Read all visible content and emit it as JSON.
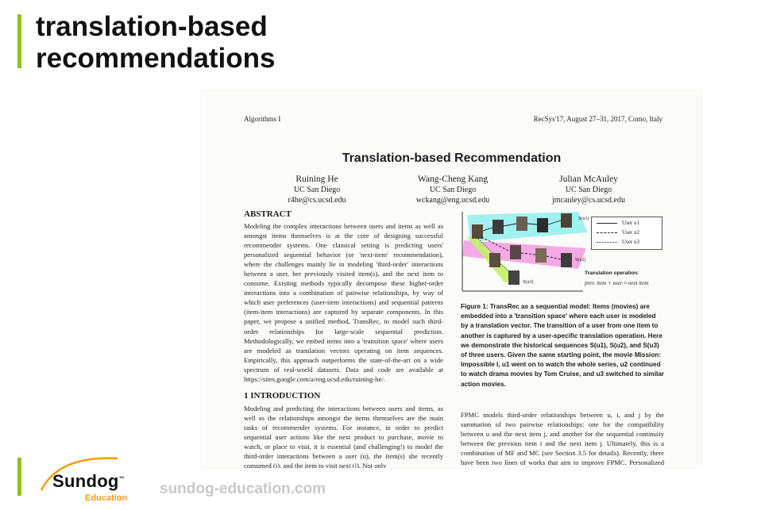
{
  "slide": {
    "title_line1": "translation-based",
    "title_line2": "recommendations"
  },
  "paper": {
    "header_left": "Algorithms I",
    "header_right": "RecSys'17, August 27–31, 2017, Como, Italy",
    "title": "Translation-based Recommendation",
    "authors": [
      {
        "name": "Ruining He",
        "affiliation": "UC San Diego",
        "email": "r4he@cs.ucsd.edu"
      },
      {
        "name": "Wang-Cheng Kang",
        "affiliation": "UC San Diego",
        "email": "wckang@eng.ucsd.edu"
      },
      {
        "name": "Julian McAuley",
        "affiliation": "UC San Diego",
        "email": "jmcauley@cs.ucsd.edu"
      }
    ],
    "abstract_heading": "ABSTRACT",
    "abstract": "Modeling the complex interactions between users and items as well as amongst items themselves is at the core of designing successful recommender systems. One classical setting is predicting users' personalized sequential behavior (or 'next-item' recommendation), where the challenges mainly lie in modeling 'third-order' interactions between a user, her previously visited item(s), and the next item to consume. Existing methods typically decompose these higher-order interactions into a combination of pairwise relationships, by way of which user preferences (user-item interactions) and sequential patterns (item-item interactions) are captured by separate components. In this paper, we propose a unified method, TransRec, to model such third-order relationships for large-scale sequential prediction. Methodologically, we embed items into a 'transition space' where users are modeled as translation vectors operating on item sequences. Empirically, this approach outperforms the state-of-the-art on a wide spectrum of real-world datasets. Data and code are available at https://sites.google.com/a/eng.ucsd.edu/ruining-he/.",
    "intro_heading": "1   INTRODUCTION",
    "intro": "Modeling and predicting the interactions between users and items, as well as the relationships amongst the items themselves are the main tasks of recommender systems. For instance, in order to predict sequential user actions like the next product to purchase, movie to watch, or place to visit, it is essential (and challenging!) to model the third-order interactions between a user (u), the item(s) she recently consumed (i), and the item to visit next (j). Not only",
    "figure": {
      "seq_labels": [
        "S(u1)",
        "S(u2)",
        "S(u3)"
      ],
      "legend": [
        "User u1",
        "User u2",
        "User u3"
      ],
      "op_title": "Translation operation:",
      "op_eq": "prev. item + user ≈ next item"
    },
    "caption": "Figure 1: TransRec as a sequential model: Items (movies) are embedded into a 'transition space' where each user is modeled by a translation vector. The transition of a user from one item to another is captured by a user-specific translation operation. Here we demonstrate the historical sequences S(u1), S(u2), and S(u3) of three users. Given the same starting point, the movie Mission: Impossible I, u1 went on to watch the whole series, u2 continued to watch drama movies by Tom Cruise, and u3 switched to similar action movies.",
    "right_col": "FPMC models third-order relationships between u, i, and j by the summation of two pairwise relationships: one for the compatibility between u and the next item j, and another for the sequential continuity between the previous item i and the next item j. Ultimately, this is a combination of MF and MC (see Section 3.5 for details).     Recently, there have been two lines of works that aim to improve FPMC. Personalized metric embedding methods replace the inner"
  },
  "brand": {
    "logo_text": "Sundog",
    "logo_tm": "™",
    "logo_sub": "Education",
    "url": "sundog-education.com"
  }
}
